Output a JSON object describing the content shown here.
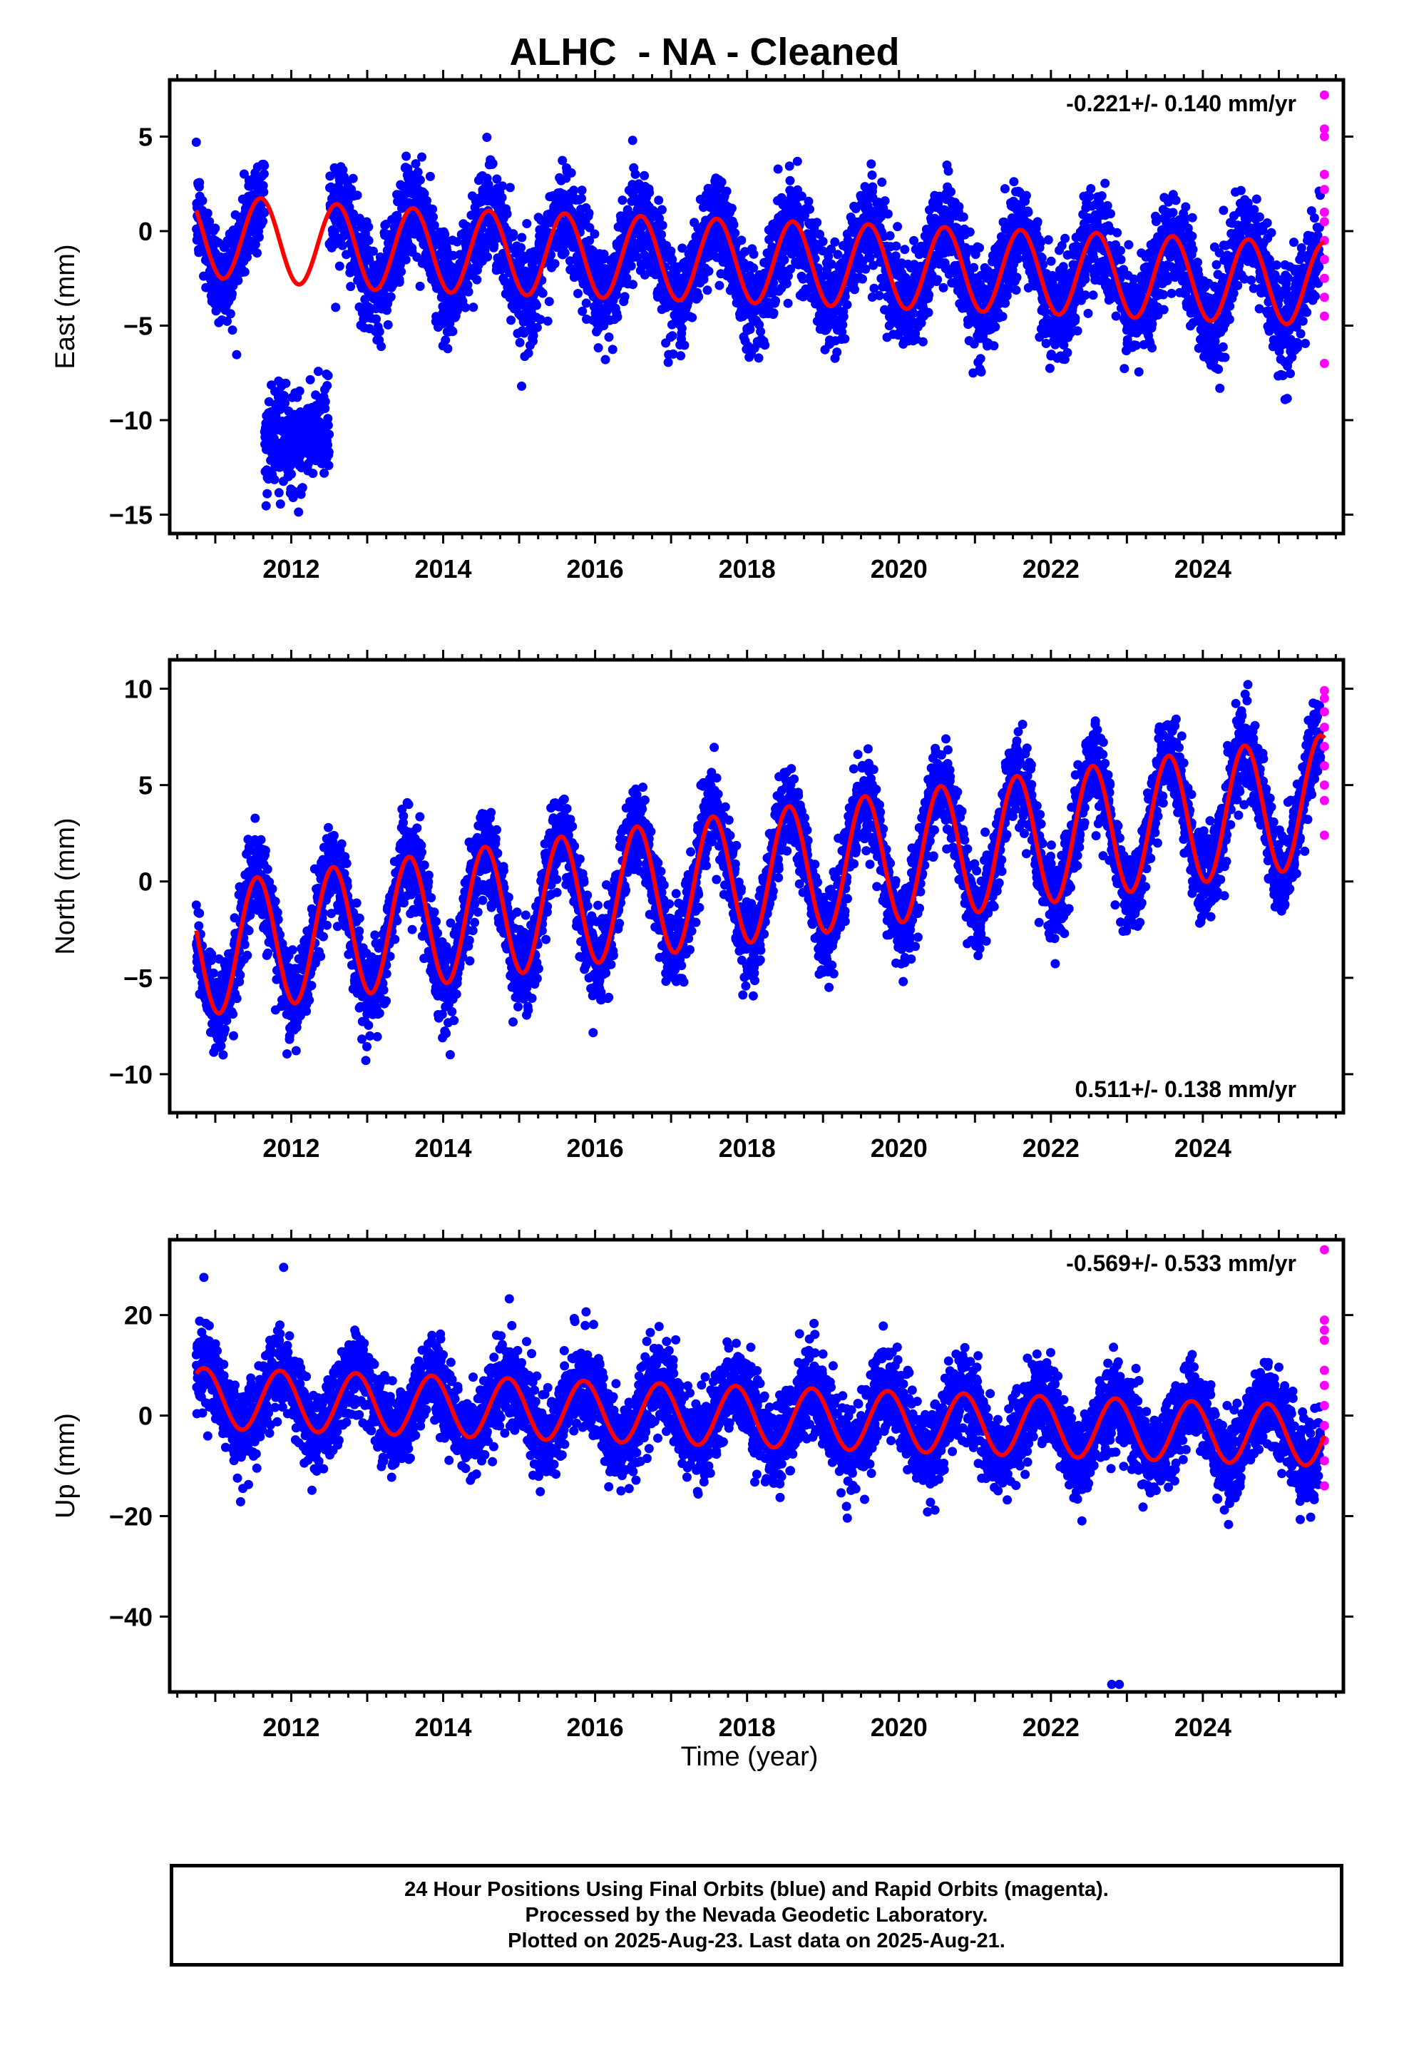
{
  "title": "ALHC  - NA - Cleaned",
  "x_axis_title": "Time (year)",
  "footer": {
    "line1": "24 Hour Positions Using Final Orbits (blue) and Rapid Orbits (magenta).",
    "line2": "Processed by the Nevada Geodetic Laboratory.",
    "line3": "Plotted on 2025-Aug-23. Last data on 2025-Aug-21."
  },
  "colors": {
    "final_orbits": "#0000ff",
    "rapid_orbits": "#ff00ff",
    "model_fit": "#ff0000",
    "frame": "#000000"
  },
  "chart_data": [
    {
      "type": "scatter",
      "component": "East",
      "ylabel": "East (mm)",
      "xlim": [
        2010.4,
        2025.85
      ],
      "ylim": [
        -16,
        8
      ],
      "x_ticks": [
        2012,
        2014,
        2016,
        2018,
        2020,
        2022,
        2024
      ],
      "y_ticks": [
        -15,
        -10,
        -5,
        0,
        5
      ],
      "rate_label": "-0.221+/- 0.140 mm/yr",
      "rate_position": "top-right",
      "series": [
        {
          "role": "final_orbits_daily",
          "color": "#0000ff",
          "data_start": 2010.75,
          "data_end": 2025.55,
          "approx_std_mm": 1.3
        },
        {
          "role": "final_orbits_offset_segment",
          "color": "#0000ff",
          "x_range": [
            2011.65,
            2012.5
          ],
          "approx_center_mm": -11.0
        },
        {
          "role": "rapid_orbits",
          "color": "#ff00ff",
          "x": 2025.6,
          "values": [
            7.2,
            5.4,
            5.0,
            3.0,
            2.2,
            1.0,
            0.5,
            -0.5,
            -1.5,
            -2.5,
            -3.5,
            -4.5,
            -7.0
          ]
        },
        {
          "role": "model_fit",
          "color": "#ff0000",
          "annual_peak_month_frac": 0.6,
          "amplitude_mm": 2.2,
          "trend_points": [
            [
              2010.75,
              -0.2
            ],
            [
              2013.0,
              -0.9
            ],
            [
              2018.0,
              -1.6
            ],
            [
              2022.0,
              -2.2
            ],
            [
              2025.6,
              -2.8
            ]
          ]
        }
      ]
    },
    {
      "type": "scatter",
      "component": "North",
      "ylabel": "North (mm)",
      "xlim": [
        2010.4,
        2025.85
      ],
      "ylim": [
        -12,
        11.5
      ],
      "x_ticks": [
        2012,
        2014,
        2016,
        2018,
        2020,
        2022,
        2024
      ],
      "y_ticks": [
        -10,
        -5,
        0,
        5,
        10
      ],
      "rate_label": "0.511+/- 0.138 mm/yr",
      "rate_position": "bottom-right",
      "series": [
        {
          "role": "final_orbits_daily",
          "color": "#0000ff",
          "data_start": 2010.75,
          "data_end": 2025.55,
          "approx_std_mm": 1.1
        },
        {
          "role": "rapid_orbits",
          "color": "#ff00ff",
          "x": 2025.6,
          "values": [
            9.9,
            9.5,
            8.8,
            8.0,
            7.0,
            6.0,
            5.0,
            4.2,
            2.4
          ]
        },
        {
          "role": "model_fit",
          "color": "#ff0000",
          "annual_peak_month_frac": 0.55,
          "amplitude_mm": 3.4,
          "trend_points": [
            [
              2010.75,
              -3.6
            ],
            [
              2025.6,
              4.2
            ]
          ]
        }
      ]
    },
    {
      "type": "scatter",
      "component": "Up",
      "ylabel": "Up (mm)",
      "xlim": [
        2010.4,
        2025.85
      ],
      "ylim": [
        -55,
        35
      ],
      "x_ticks": [
        2012,
        2014,
        2016,
        2018,
        2020,
        2022,
        2024
      ],
      "y_ticks": [
        -40,
        -20,
        0,
        20
      ],
      "rate_label": "-0.569+/- 0.533 mm/yr",
      "rate_position": "top-right",
      "series": [
        {
          "role": "final_orbits_daily",
          "color": "#0000ff",
          "data_start": 2010.75,
          "data_end": 2025.55,
          "approx_std_mm": 4.2
        },
        {
          "role": "rapid_orbits",
          "color": "#ff00ff",
          "x": 2025.6,
          "values": [
            33.0,
            19.0,
            17.0,
            15.0,
            9.0,
            6.0,
            2.0,
            -2.0,
            -5.0,
            -9.0,
            -14.0
          ]
        },
        {
          "role": "model_fit",
          "color": "#ff0000",
          "annual_peak_month_frac": 0.85,
          "amplitude_mm": 6.0,
          "trend_points": [
            [
              2010.75,
              3.5
            ],
            [
              2025.6,
              -4.0
            ]
          ]
        },
        {
          "role": "outliers",
          "color": "#0000ff",
          "points": [
            [
              2022.8,
              -53.5
            ],
            [
              2022.9,
              -53.5
            ],
            [
              2010.85,
              27.5
            ],
            [
              2011.9,
              29.5
            ]
          ]
        }
      ]
    }
  ]
}
